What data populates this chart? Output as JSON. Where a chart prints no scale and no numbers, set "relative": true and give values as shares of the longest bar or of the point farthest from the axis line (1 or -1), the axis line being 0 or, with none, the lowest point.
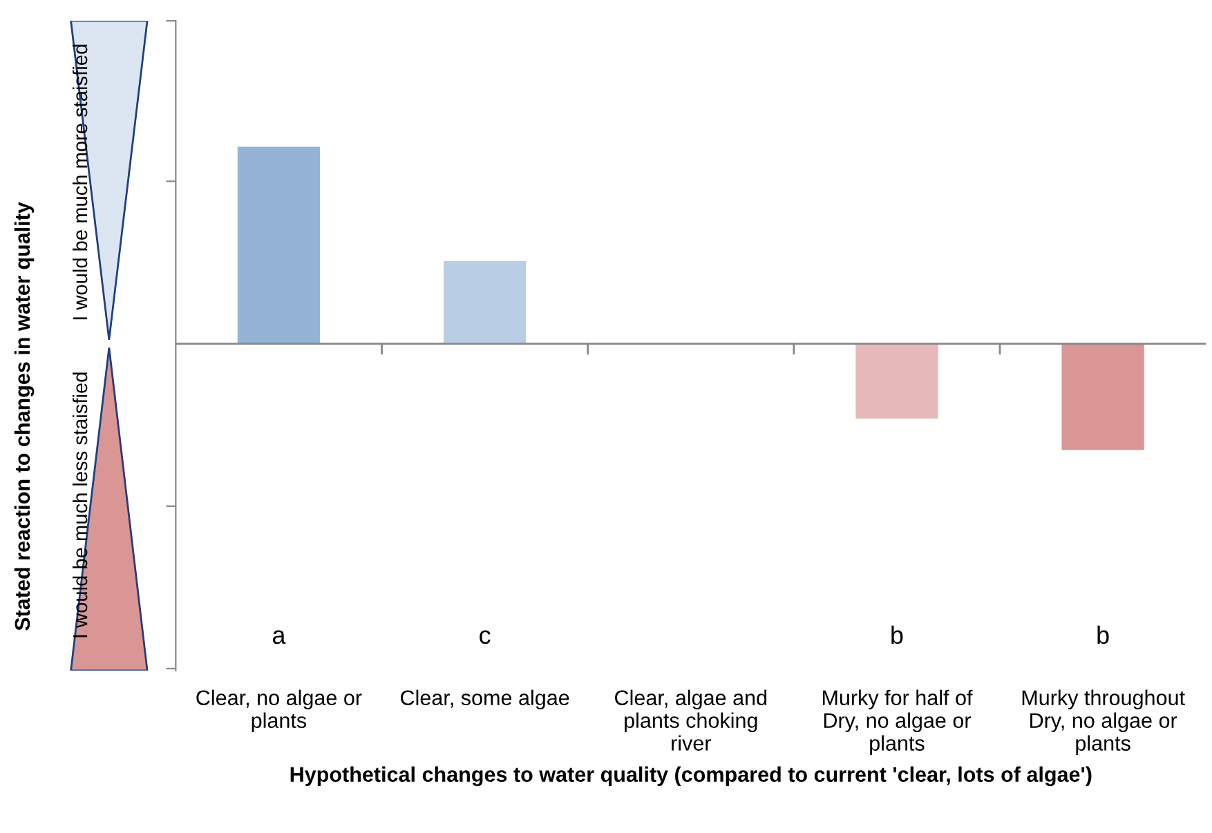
{
  "chart_data": {
    "type": "bar",
    "relative": true,
    "xlabel": "Hypothetical changes to water quality (compared to current 'clear, lots of algae')",
    "categories": [
      "Clear, no algae or\nplants",
      "Clear, some algae",
      "Clear, algae and\nplants choking\nriver",
      "Murky for half of\nDry, no algae or\nplants",
      "Murky throughout\nDry, no algae or\nplants"
    ],
    "values": [
      1,
      0.42,
      0,
      -0.38,
      -0.54
    ],
    "colors": [
      "#95b3d7",
      "#b9cde5",
      "#95b3d7",
      "#e6b9b8",
      "#d99694"
    ],
    "annotations": [
      "Stated reaction to changes in water quality",
      "I would be much more staisfied",
      "I would be much less staisfied",
      "a",
      "c",
      "b",
      "b"
    ]
  }
}
